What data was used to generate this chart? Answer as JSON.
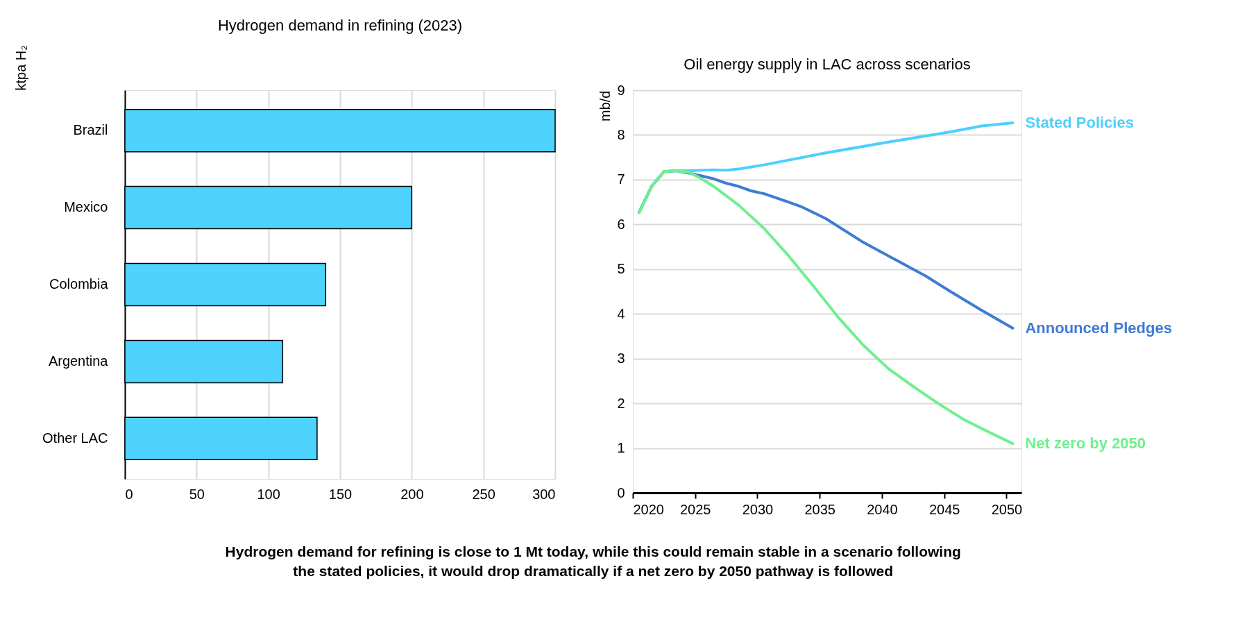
{
  "chart_data": [
    {
      "type": "bar",
      "orientation": "horizontal",
      "title": "Hydrogen demand in refining (2023)",
      "ylabel": "ktpa H₂",
      "categories": [
        "Brazil",
        "Mexico",
        "Colombia",
        "Argentina",
        "Other LAC"
      ],
      "values": [
        300,
        200,
        140,
        110,
        134
      ],
      "color": "#4dd3fe",
      "xlim": [
        0,
        300
      ],
      "xticks": [
        0,
        50,
        100,
        150,
        200,
        250,
        300
      ],
      "grid": "x",
      "annotations": [
        "Hydrogen demand for refining is close to 1 Mt today, while this could remain stable in a scenario following",
        "the stated policies, it would drop dramatically if a net zero by 2050 pathway is followed"
      ]
    },
    {
      "type": "line",
      "title": "Oil energy supply in LAC across scenarios",
      "ylabel": "mb/d",
      "xlim": [
        2020,
        2051.2
      ],
      "xticks": [
        2020,
        2025,
        2030,
        2035,
        2040,
        2045,
        2050
      ],
      "ylim": [
        0,
        9
      ],
      "yticks": [
        0,
        1,
        2,
        3,
        4,
        5,
        6,
        7,
        8,
        9
      ],
      "grid": "y",
      "legend": false,
      "marker": "none",
      "line_style": "solid",
      "series": [
        {
          "name": "Stated Policies",
          "color": "#4dd0fc",
          "x": [
            2020.5,
            2021.5,
            2022.5,
            2023.5,
            2024.5,
            2026.5,
            2027.5,
            2028.5,
            2030.5,
            2035.5,
            2040.5,
            2045.5,
            2048,
            2050.5
          ],
          "values": [
            6.27,
            6.85,
            7.18,
            7.2,
            7.2,
            7.22,
            7.21,
            7.24,
            7.33,
            7.6,
            7.84,
            8.07,
            8.2,
            8.27
          ]
        },
        {
          "name": "Announced Pledges",
          "color": "#3f7bd6",
          "x": [
            2020.5,
            2021.5,
            2022.5,
            2023.5,
            2024.5,
            2026.5,
            2027.5,
            2028.5,
            2029.5,
            2030.5,
            2032.5,
            2033.5,
            2035.5,
            2038.5,
            2040.5,
            2043.5,
            2045.5,
            2048,
            2050.5
          ],
          "values": [
            6.27,
            6.85,
            7.18,
            7.2,
            7.15,
            7.02,
            6.92,
            6.85,
            6.75,
            6.69,
            6.5,
            6.4,
            6.13,
            5.6,
            5.3,
            4.85,
            4.5,
            4.08,
            3.68
          ]
        },
        {
          "name": "Net zero by 2050",
          "color": "#6ef08f",
          "x": [
            2020.5,
            2021.5,
            2022.5,
            2023.5,
            2024.5,
            2025.5,
            2026.5,
            2028.5,
            2030.5,
            2032.5,
            2034.5,
            2036.5,
            2038.5,
            2040.5,
            2042.5,
            2044.5,
            2046.5,
            2048.5,
            2050.5
          ],
          "values": [
            6.27,
            6.85,
            7.18,
            7.2,
            7.17,
            7.02,
            6.85,
            6.43,
            5.92,
            5.3,
            4.62,
            3.92,
            3.3,
            2.78,
            2.38,
            2.0,
            1.65,
            1.37,
            1.1
          ]
        }
      ]
    }
  ]
}
